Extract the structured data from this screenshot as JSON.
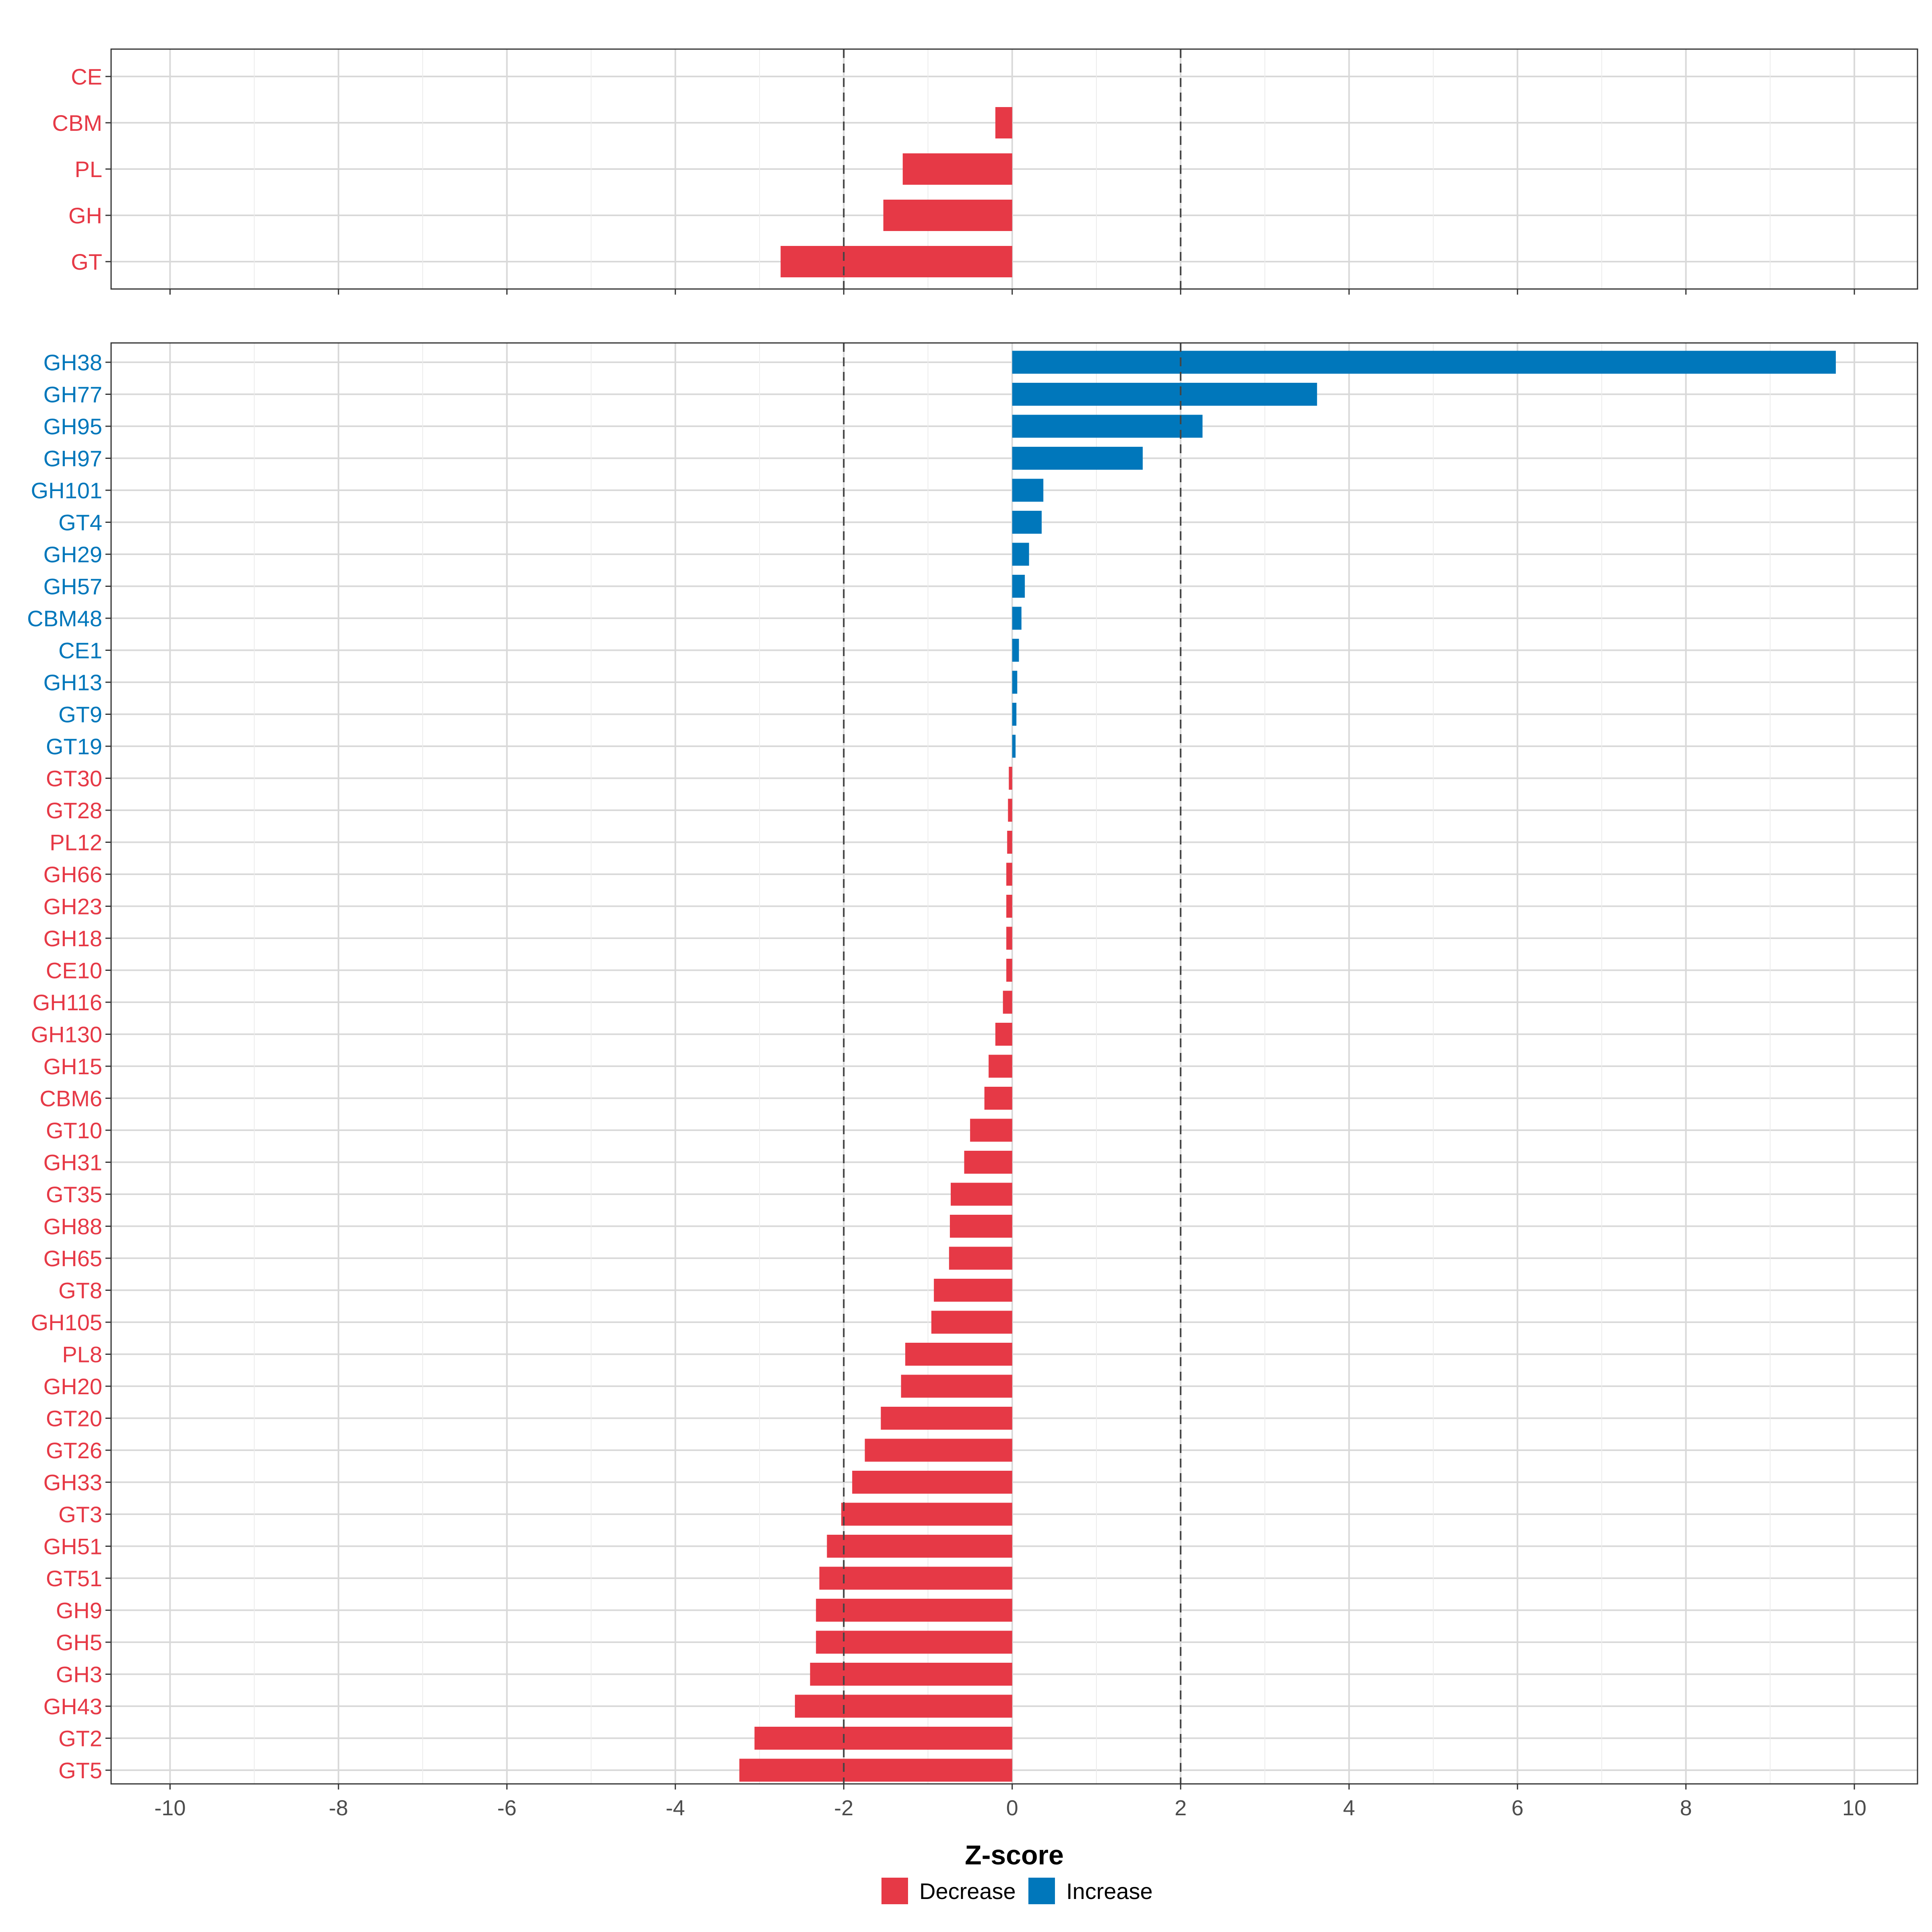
{
  "chart_data": {
    "type": "bar",
    "orientation": "horizontal",
    "xlabel": "Z-score",
    "xlim": [
      -10.7,
      10.75
    ],
    "x_ticks": [
      "-10",
      "-8",
      "-6",
      "-4",
      "-2",
      "0",
      "2",
      "4",
      "6",
      "8",
      "10"
    ],
    "x_tick_values": [
      -10,
      -8,
      -6,
      -4,
      -2,
      0,
      2,
      4,
      6,
      8,
      10
    ],
    "threshold_lines": [
      -2,
      2
    ],
    "grid": true,
    "colors": {
      "Decrease": "#E63946",
      "Increase": "#0077BB"
    },
    "legend": {
      "position": "bottom",
      "entries": [
        {
          "label": "Decrease",
          "color": "#E63946"
        },
        {
          "label": "Increase",
          "color": "#0077BB"
        }
      ]
    },
    "panels": [
      {
        "name": "classes",
        "categories": [
          "CE",
          "CBM",
          "PL",
          "GH",
          "GT"
        ],
        "values": [
          0.0,
          -0.2,
          -1.3,
          -1.53,
          -2.75
        ],
        "direction": [
          "Decrease",
          "Decrease",
          "Decrease",
          "Decrease",
          "Decrease"
        ]
      },
      {
        "name": "families",
        "categories": [
          "GH38",
          "GH77",
          "GH95",
          "GH97",
          "GH101",
          "GT4",
          "GH29",
          "GH57",
          "CBM48",
          "CE1",
          "GH13",
          "GT9",
          "GT19",
          "GT30",
          "GT28",
          "PL12",
          "GH66",
          "GH23",
          "GH18",
          "CE10",
          "GH116",
          "GH130",
          "GH15",
          "CBM6",
          "GT10",
          "GH31",
          "GT35",
          "GH88",
          "GH65",
          "GT8",
          "GH105",
          "PL8",
          "GH20",
          "GT20",
          "GT26",
          "GH33",
          "GT3",
          "GH51",
          "GT51",
          "GH9",
          "GH5",
          "GH3",
          "GH43",
          "GT2",
          "GT5"
        ],
        "values": [
          9.78,
          3.62,
          2.26,
          1.55,
          0.37,
          0.35,
          0.2,
          0.15,
          0.11,
          0.08,
          0.06,
          0.05,
          0.04,
          -0.04,
          -0.05,
          -0.06,
          -0.07,
          -0.07,
          -0.07,
          -0.07,
          -0.11,
          -0.2,
          -0.28,
          -0.33,
          -0.5,
          -0.57,
          -0.73,
          -0.74,
          -0.75,
          -0.93,
          -0.96,
          -1.27,
          -1.32,
          -1.56,
          -1.75,
          -1.9,
          -2.03,
          -2.2,
          -2.29,
          -2.33,
          -2.33,
          -2.4,
          -2.58,
          -3.06,
          -3.24
        ],
        "direction": [
          "Increase",
          "Increase",
          "Increase",
          "Increase",
          "Increase",
          "Increase",
          "Increase",
          "Increase",
          "Increase",
          "Increase",
          "Increase",
          "Increase",
          "Increase",
          "Decrease",
          "Decrease",
          "Decrease",
          "Decrease",
          "Decrease",
          "Decrease",
          "Decrease",
          "Decrease",
          "Decrease",
          "Decrease",
          "Decrease",
          "Decrease",
          "Decrease",
          "Decrease",
          "Decrease",
          "Decrease",
          "Decrease",
          "Decrease",
          "Decrease",
          "Decrease",
          "Decrease",
          "Decrease",
          "Decrease",
          "Decrease",
          "Decrease",
          "Decrease",
          "Decrease",
          "Decrease",
          "Decrease",
          "Decrease",
          "Decrease",
          "Decrease"
        ]
      }
    ]
  }
}
